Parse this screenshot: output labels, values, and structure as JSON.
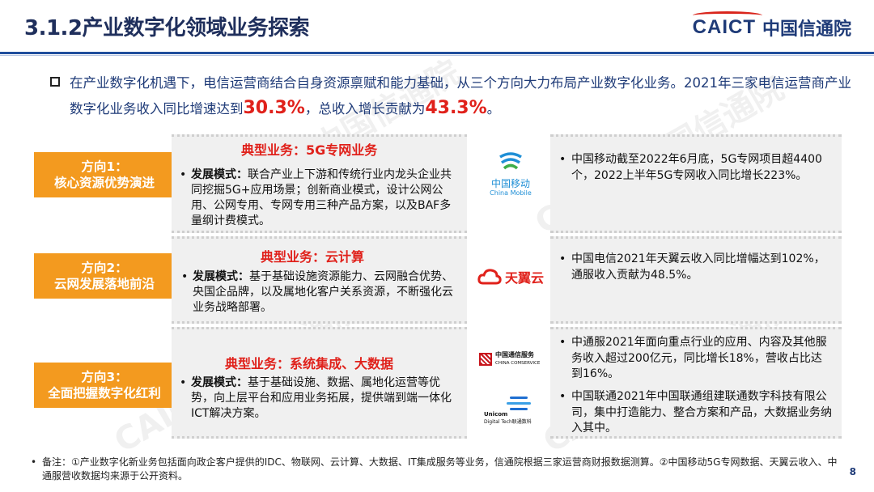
{
  "header": {
    "title": "3.1.2产业数字化领域业务探索",
    "brand_en": "CAICT",
    "brand_cn": "中国信通院"
  },
  "intro": {
    "text_1": "在产业数字化机遇下，电信运营商结合自身资源禀赋和能力基础，从三个方向大力布局产业数字化业务。2021年三家电信运营商产业数字化业务收入同比增速达到",
    "value_1": "30.3%",
    "text_2": "，总收入增长贡献为",
    "value_2": "43.3%",
    "text_3": "。"
  },
  "directions": [
    {
      "label_1": "方向1：",
      "label_2": "核心资源优势演进",
      "biz_title": "典型业务：5G专网业务",
      "mode_label": "发展模式：",
      "mode_text": "联合产业上下游和传统行业内龙头企业共同挖掘5G+应用场景；创新商业模式，设计公网公用、公网专用、专网专用三种产品方案，以及BAF多量纲计费模式。",
      "logo_cn": "中国移动",
      "logo_en": "China Mobile",
      "notes": [
        "中国移动截至2022年6月底，5G专网项目超4400个，2022上半年5G专网收入同比增长223%。"
      ]
    },
    {
      "label_1": "方向2：",
      "label_2": "云网发展落地前沿",
      "biz_title": "典型业务：云计算",
      "mode_label": "发展模式：",
      "mode_text": "基于基础设施资源能力、云网融合优势、央国企品牌，以及属地化客户关系资源，不断强化云业务战略部署。",
      "logo_cn": "天翼云",
      "notes": [
        "中国电信2021年天翼云收入同比增幅达到102%，通服收入贡献为48.5%。"
      ]
    },
    {
      "label_1": "方向3：",
      "label_2": "全面把握数字化红利",
      "biz_title": "典型业务：系统集成、大数据",
      "mode_label": "发展模式：",
      "mode_text": "基于基础设施、数据、属地化运营等优势，向上层平台和应用业务拓展，提供端到端一体化ICT解决方案。",
      "logo_cn": "中国通信服务",
      "logo_en": "CHINA COMSERVICE",
      "logo2_en": "Unicom",
      "logo2_sub": "Digital Tech联通数科",
      "notes": [
        "中通服2021年面向重点行业的应用、内容及其他服务收入超过200亿元，同比增长18%，营收占比达到16%。",
        "中国联通2021年中国联通组建联通数字科技有限公司，集中打造能力、整合方案和产品，大数据业务纳入其中。"
      ]
    }
  ],
  "footnote": "备注：①产业数字化新业务包括面向政企客户提供的IDC、物联网、云计算、大数据、IT集成服务等业务，信通院根据三家运营商财报数据测算。②中国移动5G专网数据、天翼云收入、中通服营收数据均来源于公开资料。",
  "page_number": "8",
  "colors": {
    "title": "#1f2f5c",
    "accent_red": "#e0211b",
    "direction_orange": "#f39a1f",
    "brand_blue": "#1f3b78"
  }
}
